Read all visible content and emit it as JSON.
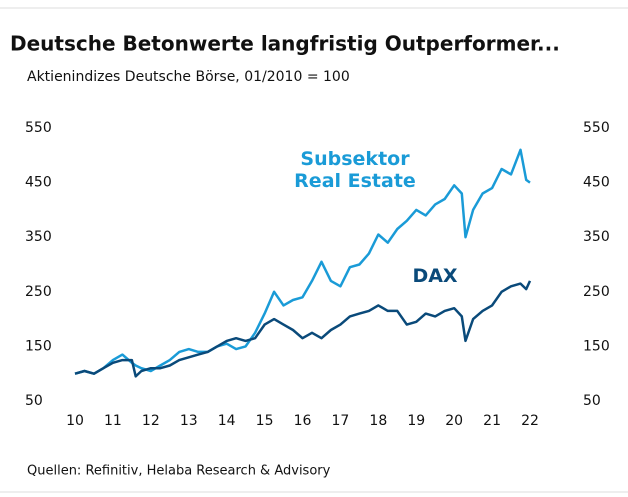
{
  "chart_data": {
    "type": "line",
    "title": "Deutsche Betonwerte langfristig Outperformer...",
    "subtitle": "Aktienindizes Deutsche Börse, 01/2010 = 100",
    "source": "Quellen: Refinitiv, Helaba Research & Advisory",
    "xlim": [
      10,
      22
    ],
    "xticks": [
      10,
      11,
      12,
      13,
      14,
      15,
      16,
      17,
      18,
      19,
      20,
      21,
      22
    ],
    "ylim": [
      50,
      550
    ],
    "yticks": [
      50,
      150,
      250,
      350,
      450,
      550
    ],
    "grid": false,
    "x": [
      10.0,
      10.25,
      10.5,
      10.75,
      11.0,
      11.25,
      11.5,
      11.6,
      11.75,
      12.0,
      12.25,
      12.5,
      12.75,
      13.0,
      13.25,
      13.5,
      13.75,
      14.0,
      14.25,
      14.5,
      14.75,
      15.0,
      15.25,
      15.5,
      15.75,
      16.0,
      16.25,
      16.5,
      16.75,
      17.0,
      17.25,
      17.5,
      17.75,
      18.0,
      18.25,
      18.5,
      18.75,
      19.0,
      19.25,
      19.5,
      19.75,
      20.0,
      20.2,
      20.3,
      20.5,
      20.75,
      21.0,
      21.25,
      21.5,
      21.75,
      21.9,
      22.0
    ],
    "series": [
      {
        "name": "Subsektor Real Estate",
        "color": "#1a9bd7",
        "values": [
          100,
          105,
          100,
          110,
          125,
          135,
          120,
          115,
          110,
          105,
          115,
          125,
          140,
          145,
          140,
          140,
          150,
          155,
          145,
          150,
          175,
          210,
          250,
          225,
          235,
          240,
          270,
          305,
          270,
          260,
          295,
          300,
          320,
          355,
          340,
          365,
          380,
          400,
          390,
          410,
          420,
          445,
          430,
          350,
          400,
          430,
          440,
          475,
          465,
          510,
          455,
          450
        ]
      },
      {
        "name": "DAX",
        "color": "#0a4a7a",
        "values": [
          100,
          105,
          100,
          110,
          120,
          125,
          125,
          95,
          105,
          110,
          110,
          115,
          125,
          130,
          135,
          140,
          150,
          160,
          165,
          160,
          165,
          190,
          200,
          190,
          180,
          165,
          175,
          165,
          180,
          190,
          205,
          210,
          215,
          225,
          215,
          215,
          190,
          195,
          210,
          205,
          215,
          220,
          205,
          160,
          200,
          215,
          225,
          250,
          260,
          265,
          255,
          270
        ]
      }
    ]
  }
}
